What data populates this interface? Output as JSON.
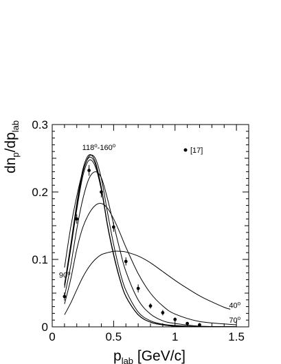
{
  "chart_data": {
    "type": "line",
    "title": "",
    "xlabel": "p",
    "xlabel_sub": "lab",
    "xlabel_unit": " [GeV/c]",
    "ylabel_parts": [
      "dn",
      "p",
      "/dp",
      "lab"
    ],
    "xlim": [
      0,
      1.6
    ],
    "ylim": [
      0,
      0.3
    ],
    "x_ticks": [
      0,
      0.5,
      1,
      1.5
    ],
    "x_tick_labels": [
      "0",
      "0.5",
      "1",
      "1.5"
    ],
    "y_ticks": [
      0,
      0.1,
      0.2,
      0.3
    ],
    "y_tick_labels": [
      "0",
      "0.1",
      "0.2",
      "0.3"
    ],
    "grid": false,
    "legend": {
      "position": "top-right",
      "label": "[17]",
      "marker": "dot"
    },
    "annotations": [
      {
        "text": "118",
        "sup": "o",
        "suffix": "-160",
        "sup2": "o",
        "at": [
          0.38,
          0.262
        ]
      },
      {
        "text": "90",
        "sup": "o",
        "at": [
          0.055,
          0.073
        ]
      },
      {
        "text": "40",
        "sup": "o",
        "at": [
          1.44,
          0.028
        ]
      },
      {
        "text": "70",
        "sup": "o",
        "at": [
          1.44,
          0.006
        ]
      }
    ],
    "series": [
      {
        "values": [
          [
            0.1,
            0.063
          ],
          [
            0.15,
            0.121
          ],
          [
            0.2,
            0.183
          ],
          [
            0.25,
            0.234
          ],
          [
            0.3,
            0.255
          ],
          [
            0.35,
            0.245
          ],
          [
            0.4,
            0.207
          ],
          [
            0.45,
            0.152
          ],
          [
            0.5,
            0.108
          ],
          [
            0.55,
            0.072
          ],
          [
            0.6,
            0.045
          ],
          [
            0.7,
            0.018
          ],
          [
            0.8,
            0.007
          ],
          [
            0.9,
            0.003
          ],
          [
            1.0,
            0.001
          ],
          [
            1.2,
            0.0003
          ],
          [
            1.5,
            0.0001
          ]
        ]
      },
      {
        "values": [
          [
            0.1,
            0.061
          ],
          [
            0.15,
            0.118
          ],
          [
            0.2,
            0.179
          ],
          [
            0.25,
            0.229
          ],
          [
            0.3,
            0.251
          ],
          [
            0.35,
            0.242
          ],
          [
            0.4,
            0.205
          ],
          [
            0.45,
            0.151
          ],
          [
            0.5,
            0.107
          ],
          [
            0.55,
            0.071
          ],
          [
            0.6,
            0.045
          ],
          [
            0.7,
            0.018
          ],
          [
            0.8,
            0.007
          ],
          [
            0.9,
            0.003
          ],
          [
            1.0,
            0.001
          ],
          [
            1.2,
            0.0003
          ],
          [
            1.5,
            0.0001
          ]
        ]
      },
      {
        "values": [
          [
            0.1,
            0.058
          ],
          [
            0.15,
            0.114
          ],
          [
            0.2,
            0.174
          ],
          [
            0.25,
            0.224
          ],
          [
            0.3,
            0.247
          ],
          [
            0.35,
            0.238
          ],
          [
            0.4,
            0.203
          ],
          [
            0.45,
            0.15
          ],
          [
            0.5,
            0.106
          ],
          [
            0.55,
            0.071
          ],
          [
            0.6,
            0.045
          ],
          [
            0.7,
            0.018
          ],
          [
            0.8,
            0.007
          ],
          [
            0.9,
            0.003
          ],
          [
            1.0,
            0.001
          ],
          [
            1.2,
            0.0003
          ],
          [
            1.5,
            0.0001
          ]
        ]
      },
      {
        "values": [
          [
            0.1,
            0.088
          ],
          [
            0.15,
            0.147
          ],
          [
            0.2,
            0.194
          ],
          [
            0.25,
            0.231
          ],
          [
            0.3,
            0.253
          ],
          [
            0.35,
            0.25
          ],
          [
            0.4,
            0.22
          ],
          [
            0.45,
            0.17
          ],
          [
            0.5,
            0.122
          ],
          [
            0.55,
            0.083
          ],
          [
            0.6,
            0.054
          ],
          [
            0.7,
            0.022
          ],
          [
            0.8,
            0.009
          ],
          [
            0.9,
            0.004
          ],
          [
            1.0,
            0.002
          ],
          [
            1.2,
            0.0005
          ],
          [
            1.5,
            0.0001
          ]
        ]
      },
      {
        "values": [
          [
            0.1,
            0.045
          ],
          [
            0.15,
            0.09
          ],
          [
            0.2,
            0.145
          ],
          [
            0.25,
            0.19
          ],
          [
            0.3,
            0.22
          ],
          [
            0.35,
            0.23
          ],
          [
            0.4,
            0.221
          ],
          [
            0.45,
            0.19
          ],
          [
            0.5,
            0.152
          ],
          [
            0.55,
            0.115
          ],
          [
            0.6,
            0.082
          ],
          [
            0.7,
            0.04
          ],
          [
            0.8,
            0.019
          ],
          [
            0.9,
            0.009
          ],
          [
            1.0,
            0.005
          ],
          [
            1.2,
            0.001
          ],
          [
            1.5,
            0.0002
          ]
        ]
      },
      {
        "values": [
          [
            0.1,
            0.034
          ],
          [
            0.15,
            0.07
          ],
          [
            0.2,
            0.115
          ],
          [
            0.25,
            0.148
          ],
          [
            0.3,
            0.168
          ],
          [
            0.35,
            0.18
          ],
          [
            0.4,
            0.183
          ],
          [
            0.45,
            0.176
          ],
          [
            0.5,
            0.16
          ],
          [
            0.55,
            0.14
          ],
          [
            0.6,
            0.118
          ],
          [
            0.7,
            0.079
          ],
          [
            0.8,
            0.05
          ],
          [
            0.9,
            0.031
          ],
          [
            1.0,
            0.019
          ],
          [
            1.2,
            0.008
          ],
          [
            1.5,
            0.003
          ]
        ]
      },
      {
        "values": [
          [
            0.1,
            0.018
          ],
          [
            0.15,
            0.035
          ],
          [
            0.2,
            0.055
          ],
          [
            0.25,
            0.074
          ],
          [
            0.3,
            0.089
          ],
          [
            0.35,
            0.1
          ],
          [
            0.4,
            0.107
          ],
          [
            0.45,
            0.11
          ],
          [
            0.5,
            0.112
          ],
          [
            0.55,
            0.112
          ],
          [
            0.6,
            0.111
          ],
          [
            0.7,
            0.105
          ],
          [
            0.8,
            0.095
          ],
          [
            0.9,
            0.082
          ],
          [
            1.0,
            0.069
          ],
          [
            1.1,
            0.057
          ],
          [
            1.2,
            0.046
          ],
          [
            1.3,
            0.037
          ],
          [
            1.4,
            0.029
          ],
          [
            1.45,
            0.026
          ]
        ]
      },
      {
        "name": "[17]",
        "marker_only": true,
        "values": [
          [
            0.1,
            0.045
          ],
          [
            0.2,
            0.16
          ],
          [
            0.3,
            0.232
          ],
          [
            0.4,
            0.2
          ],
          [
            0.5,
            0.148
          ],
          [
            0.6,
            0.097
          ],
          [
            0.7,
            0.057
          ],
          [
            0.8,
            0.031
          ],
          [
            0.9,
            0.021
          ],
          [
            1.0,
            0.011
          ],
          [
            1.1,
            0.005
          ],
          [
            1.2,
            0.003
          ]
        ],
        "errors": [
          0.006,
          0.007,
          0.008,
          0.008,
          0.007,
          0.006,
          0.006,
          0.004,
          0.004,
          0.003,
          0.002,
          0.001
        ]
      }
    ]
  }
}
